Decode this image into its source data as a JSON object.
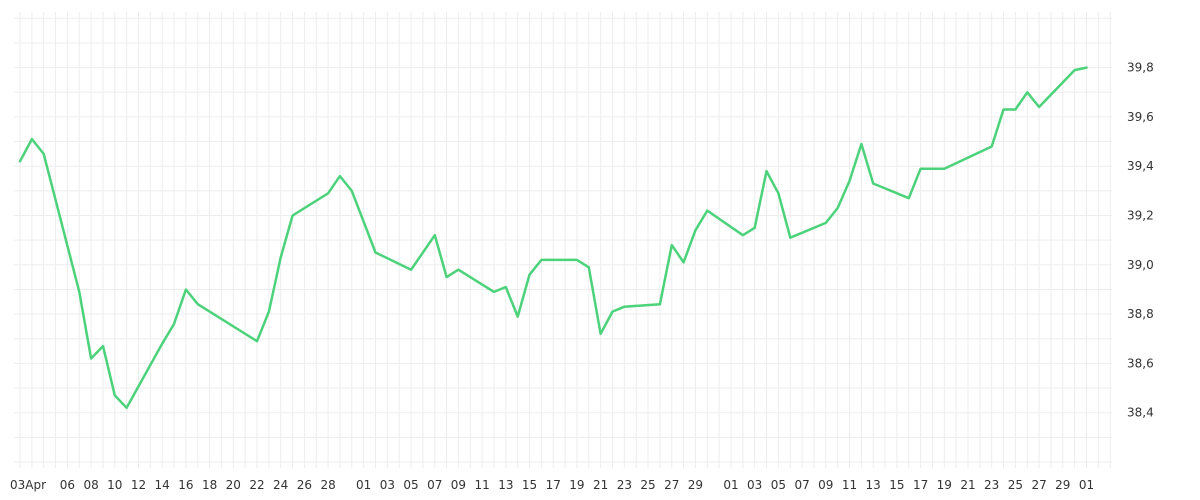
{
  "chart_data": {
    "type": "line",
    "title": "",
    "xlabel": "",
    "ylabel": "",
    "ylim": [
      38.2,
      40.0
    ],
    "y_ticks": [
      "38,4",
      "38,6",
      "38,8",
      "39,0",
      "39,2",
      "39,4",
      "39,6",
      "39,8"
    ],
    "y_axis_position": "right",
    "grid": true,
    "legend": "none",
    "line_color": "#4cd27a",
    "grid_color": "#ededed",
    "x_ticks": [
      "03Apr",
      "06",
      "08",
      "10",
      "12",
      "14",
      "16",
      "18",
      "20",
      "22",
      "24",
      "26",
      "28",
      "01",
      "03",
      "05",
      "07",
      "09",
      "11",
      "13",
      "15",
      "17",
      "19",
      "21",
      "23",
      "25",
      "27",
      "29",
      "01",
      "03",
      "05",
      "07",
      "09",
      "11",
      "13",
      "15",
      "17",
      "19",
      "21",
      "23",
      "25",
      "27",
      "29",
      "01"
    ],
    "series": [
      {
        "name": "",
        "points": [
          [
            "2023-04-02",
            39.42
          ],
          [
            "2023-04-03",
            39.51
          ],
          [
            "2023-04-04",
            39.45
          ],
          [
            "2023-04-07",
            38.89
          ],
          [
            "2023-04-08",
            38.62
          ],
          [
            "2023-04-09",
            38.67
          ],
          [
            "2023-04-10",
            38.47
          ],
          [
            "2023-04-11",
            38.42
          ],
          [
            "2023-04-14",
            38.68
          ],
          [
            "2023-04-15",
            38.76
          ],
          [
            "2023-04-16",
            38.9
          ],
          [
            "2023-04-17",
            38.84
          ],
          [
            "2023-04-22",
            38.69
          ],
          [
            "2023-04-23",
            38.81
          ],
          [
            "2023-04-24",
            39.03
          ],
          [
            "2023-04-25",
            39.2
          ],
          [
            "2023-04-28",
            39.29
          ],
          [
            "2023-04-29",
            39.36
          ],
          [
            "2023-04-30",
            39.3
          ],
          [
            "2023-05-02",
            39.05
          ],
          [
            "2023-05-05",
            38.98
          ],
          [
            "2023-05-07",
            39.12
          ],
          [
            "2023-05-08",
            38.95
          ],
          [
            "2023-05-09",
            38.98
          ],
          [
            "2023-05-12",
            38.89
          ],
          [
            "2023-05-13",
            38.91
          ],
          [
            "2023-05-14",
            38.79
          ],
          [
            "2023-05-15",
            38.96
          ],
          [
            "2023-05-16",
            39.02
          ],
          [
            "2023-05-19",
            39.02
          ],
          [
            "2023-05-20",
            38.99
          ],
          [
            "2023-05-21",
            38.72
          ],
          [
            "2023-05-22",
            38.81
          ],
          [
            "2023-05-23",
            38.83
          ],
          [
            "2023-05-26",
            38.84
          ],
          [
            "2023-05-27",
            39.08
          ],
          [
            "2023-05-28",
            39.01
          ],
          [
            "2023-05-29",
            39.14
          ],
          [
            "2023-05-30",
            39.22
          ],
          [
            "2023-06-02",
            39.12
          ],
          [
            "2023-06-03",
            39.15
          ],
          [
            "2023-06-04",
            39.38
          ],
          [
            "2023-06-05",
            39.29
          ],
          [
            "2023-06-06",
            39.11
          ],
          [
            "2023-06-09",
            39.17
          ],
          [
            "2023-06-10",
            39.23
          ],
          [
            "2023-06-11",
            39.34
          ],
          [
            "2023-06-12",
            39.49
          ],
          [
            "2023-06-13",
            39.33
          ],
          [
            "2023-06-16",
            39.27
          ],
          [
            "2023-06-17",
            39.39
          ],
          [
            "2023-06-19",
            39.39
          ],
          [
            "2023-06-23",
            39.48
          ],
          [
            "2023-06-24",
            39.63
          ],
          [
            "2023-06-25",
            39.63
          ],
          [
            "2023-06-26",
            39.7
          ],
          [
            "2023-06-27",
            39.64
          ],
          [
            "2023-06-30",
            39.79
          ],
          [
            "2023-07-01",
            39.8
          ]
        ]
      }
    ]
  }
}
